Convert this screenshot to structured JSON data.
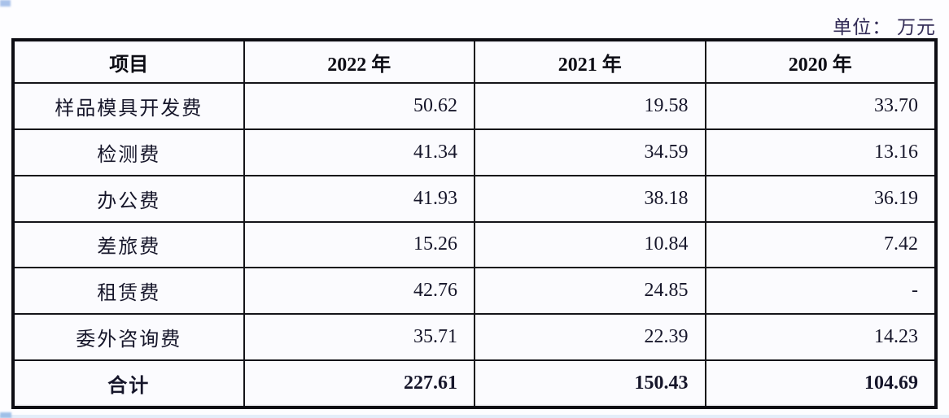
{
  "unit_label": "单位： 万元",
  "colors": {
    "border": "#0d0d13",
    "unit_text": "#322b56",
    "cell_text": "#16162a",
    "background": "#fdfdff",
    "artifact_blue": "#a9c2ea"
  },
  "table": {
    "columns": {
      "item": "项目",
      "y2022": "2022 年",
      "y2021": "2021 年",
      "y2020": "2020 年"
    },
    "rows": [
      {
        "item": "样品模具开发费",
        "v2022": "50.62",
        "v2021": "19.58",
        "v2020": "33.70"
      },
      {
        "item": "检测费",
        "v2022": "41.34",
        "v2021": "34.59",
        "v2020": "13.16"
      },
      {
        "item": "办公费",
        "v2022": "41.93",
        "v2021": "38.18",
        "v2020": "36.19"
      },
      {
        "item": "差旅费",
        "v2022": "15.26",
        "v2021": "10.84",
        "v2020": "7.42"
      },
      {
        "item": "租赁费",
        "v2022": "42.76",
        "v2021": "24.85",
        "v2020": "-"
      },
      {
        "item": "委外咨询费",
        "v2022": "35.71",
        "v2021": "22.39",
        "v2020": "14.23"
      }
    ],
    "total": {
      "item": "合计",
      "v2022": "227.61",
      "v2021": "150.43",
      "v2020": "104.69"
    }
  }
}
